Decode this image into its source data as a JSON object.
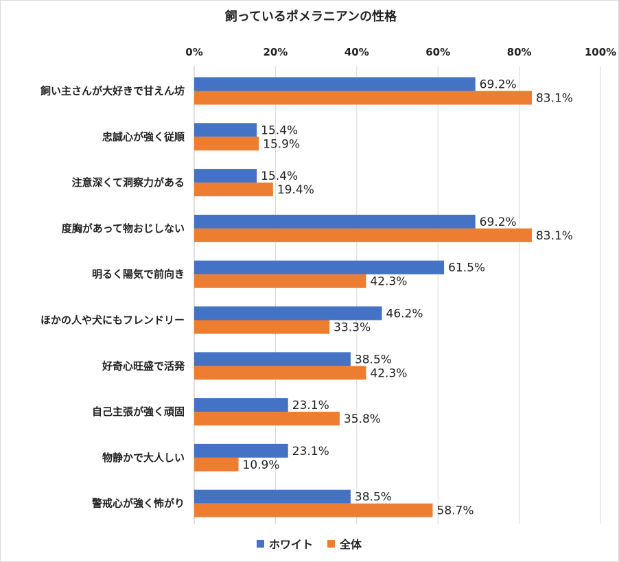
{
  "chart_data": {
    "type": "bar",
    "orientation": "horizontal",
    "title": "飼っているポメラニアンの性格",
    "categories": [
      "飼い主さんが大好きで甘えん坊",
      "忠誠心が強く従順",
      "注意深くて洞察力がある",
      "度胸があって物おじしない",
      "明るく陽気で前向き",
      "ほかの人や犬にもフレンドリー",
      "好奇心旺盛で活発",
      "自己主張が強く頑固",
      "物静かで大人しい",
      "警戒心が強く怖がり"
    ],
    "series": [
      {
        "name": "ホワイト",
        "color": "#4472c4",
        "values": [
          69.2,
          15.4,
          15.4,
          69.2,
          61.5,
          46.2,
          38.5,
          23.1,
          23.1,
          38.5
        ],
        "labels": [
          "69.2%",
          "15.4%",
          "15.4%",
          "69.2%",
          "61.5%",
          "46.2%",
          "38.5%",
          "23.1%",
          "23.1%",
          "38.5%"
        ]
      },
      {
        "name": "全体",
        "color": "#ed7d31",
        "values": [
          83.1,
          15.9,
          19.4,
          83.1,
          42.3,
          33.3,
          42.3,
          35.8,
          10.9,
          58.7
        ],
        "labels": [
          "83.1%",
          "15.9%",
          "19.4%",
          "83.1%",
          "42.3%",
          "33.3%",
          "42.3%",
          "35.8%",
          "10.9%",
          "58.7%"
        ]
      }
    ],
    "xlim": [
      0,
      100
    ],
    "x_ticks": [
      0,
      20,
      40,
      60,
      80,
      100
    ],
    "x_tick_labels": [
      "0%",
      "20%",
      "40%",
      "60%",
      "80%",
      "100%"
    ],
    "x_axis_position": "top",
    "grid": true,
    "legend_position": "bottom"
  }
}
